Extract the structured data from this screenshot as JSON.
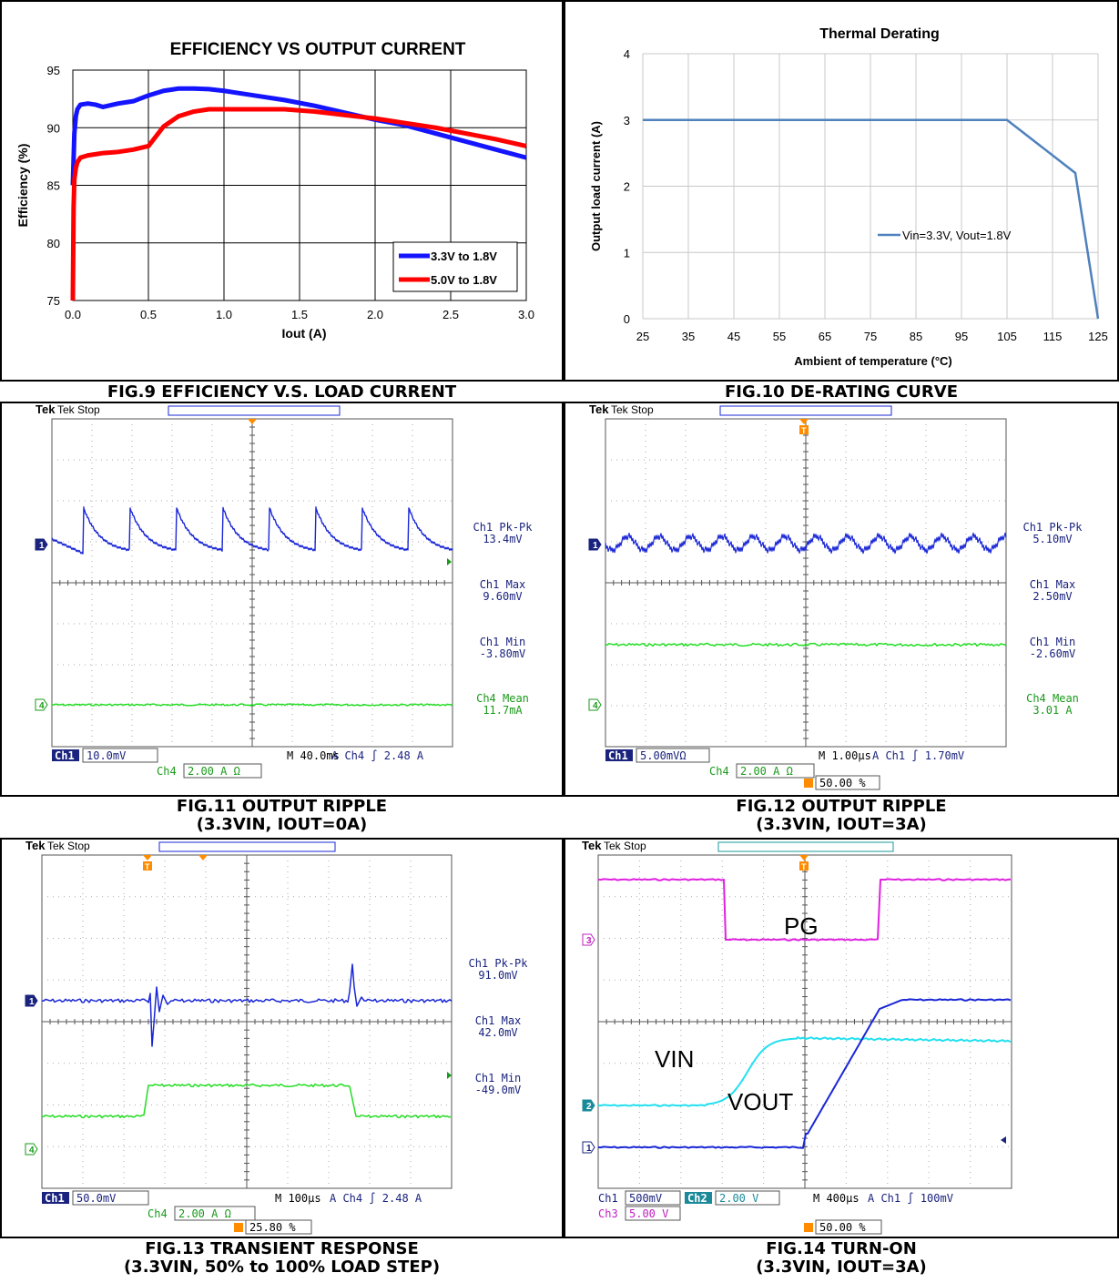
{
  "captions": {
    "fig9": "FIG.9 EFFICIENCY V.S. LOAD CURRENT",
    "fig10": "FIG.10 DE-RATING CURVE",
    "fig11_l1": "FIG.11 OUTPUT RIPPLE",
    "fig11_l2": "(3.3VIN, IOUT=0A)",
    "fig12_l1": "FIG.12 OUTPUT RIPPLE",
    "fig12_l2": "(3.3VIN, IOUT=3A)",
    "fig13_l1": "FIG.13 TRANSIENT RESPONSE",
    "fig13_l2": "(3.3VIN, 50% to 100% LOAD STEP)",
    "fig14_l1": "FIG.14 TURN-ON",
    "fig14_l2": "(3.3VIN, IOUT=3A)"
  },
  "colors": {
    "blue": "#1414ff",
    "red": "#ff0000",
    "derate": "#4f81bd",
    "scope_blue": "#1a27d6",
    "scope_green": "#22dd22",
    "scope_cyan": "#22e0f0",
    "scope_magenta": "#e020e0",
    "orange": "#ff8c00"
  },
  "chart_data": [
    {
      "type": "line",
      "title": "EFFICIENCY VS OUTPUT CURRENT",
      "xlabel": "Iout (A)",
      "ylabel": "Efficiency (%)",
      "xlim": [
        0,
        3
      ],
      "ylim": [
        75,
        95
      ],
      "xticks": [
        "0.0",
        "0.5",
        "1.0",
        "1.5",
        "2.0",
        "2.5",
        "3.0"
      ],
      "yticks": [
        "75",
        "80",
        "85",
        "90",
        "95"
      ],
      "grid": true,
      "legend_position": "bottom-right",
      "series": [
        {
          "name": "3.3V to 1.8V",
          "x": [
            0.0,
            0.01,
            0.02,
            0.03,
            0.05,
            0.1,
            0.15,
            0.2,
            0.3,
            0.4,
            0.5,
            0.6,
            0.7,
            0.8,
            0.9,
            1.0,
            1.2,
            1.4,
            1.6,
            1.8,
            2.0,
            2.2,
            2.4,
            2.6,
            2.8,
            3.0
          ],
          "y": [
            85,
            89.5,
            91.0,
            91.6,
            92.0,
            92.1,
            92.0,
            91.8,
            92.1,
            92.3,
            92.8,
            93.2,
            93.4,
            93.4,
            93.35,
            93.2,
            92.8,
            92.4,
            91.9,
            91.3,
            90.7,
            90.2,
            89.5,
            88.8,
            88.1,
            87.4
          ]
        },
        {
          "name": "5.0V to 1.8V",
          "x": [
            0.0,
            0.005,
            0.01,
            0.02,
            0.03,
            0.05,
            0.1,
            0.15,
            0.2,
            0.3,
            0.4,
            0.5,
            0.6,
            0.7,
            0.8,
            0.9,
            1.0,
            1.2,
            1.4,
            1.6,
            1.8,
            2.0,
            2.2,
            2.4,
            2.6,
            2.8,
            3.0
          ],
          "y": [
            75,
            83,
            85.5,
            86.5,
            87.0,
            87.4,
            87.6,
            87.7,
            87.8,
            87.9,
            88.1,
            88.4,
            90.1,
            91.0,
            91.4,
            91.6,
            91.6,
            91.6,
            91.6,
            91.4,
            91.1,
            90.8,
            90.4,
            90.0,
            89.5,
            89.0,
            88.4
          ]
        }
      ]
    },
    {
      "type": "line",
      "title": "Thermal Derating",
      "xlabel": "Ambient of temperature (°C)",
      "ylabel": "Output load current (A)",
      "xlim": [
        25,
        125
      ],
      "ylim": [
        0,
        4
      ],
      "xticks": [
        "25",
        "35",
        "45",
        "55",
        "65",
        "75",
        "85",
        "95",
        "105",
        "115",
        "125"
      ],
      "yticks": [
        "0",
        "1",
        "2",
        "3",
        "4"
      ],
      "grid": true,
      "legend_position": "center-right",
      "series": [
        {
          "name": "Vin=3.3V, Vout=1.8V",
          "x": [
            25,
            105,
            120,
            125
          ],
          "y": [
            3,
            3,
            2.2,
            0
          ]
        }
      ]
    },
    {
      "type": "oscilloscope",
      "top": "Tek Stop",
      "measurements": [
        "Ch1 Pk-Pk",
        "13.4mV",
        "Ch1 Max",
        "9.60mV",
        "Ch1 Min",
        "-3.80mV",
        "Ch4 Mean",
        "11.7mA"
      ],
      "settings": {
        "ch1": "10.0mV",
        "ch4": "2.00 A Ω",
        "timebase": "M 40.0ms",
        "trigger": "A  Ch4  ∫  2.48 A"
      },
      "markers": [
        "1",
        "4"
      ]
    },
    {
      "type": "oscilloscope",
      "top": "Tek Stop",
      "measurements": [
        "Ch1 Pk-Pk",
        "5.10mV",
        "Ch1 Max",
        "2.50mV",
        "Ch1 Min",
        "-2.60mV",
        "Ch4 Mean",
        "3.01 A"
      ],
      "settings": {
        "ch1": "5.00mVΩ",
        "ch4": "2.00 A Ω",
        "timebase": "M 1.00μs",
        "trigger": "A  Ch1  ∫  1.70mV",
        "trigpos": "50.00 %"
      },
      "markers": [
        "1",
        "4"
      ]
    },
    {
      "type": "oscilloscope",
      "top": "Tek Stop",
      "measurements": [
        "Ch1 Pk-Pk",
        "91.0mV",
        "Ch1 Max",
        "42.0mV",
        "Ch1 Min",
        "-49.0mV"
      ],
      "settings": {
        "ch1": "50.0mV",
        "ch4": "2.00 A Ω",
        "timebase": "M 100μs",
        "trigger": "A  Ch4  ∫  2.48 A",
        "trigpos": "25.80 %"
      },
      "markers": [
        "1",
        "4"
      ]
    },
    {
      "type": "oscilloscope",
      "top": "Tek Stop",
      "labels": [
        "PG",
        "VIN",
        "VOUT"
      ],
      "settings": {
        "ch1": "500mV",
        "ch2": "2.00 V",
        "ch3": "5.00 V",
        "timebase": "M 400μs",
        "trigger": "A  Ch1  ∫  100mV",
        "trigpos": "50.00 %"
      },
      "markers": [
        "3",
        "2",
        "1"
      ]
    }
  ]
}
